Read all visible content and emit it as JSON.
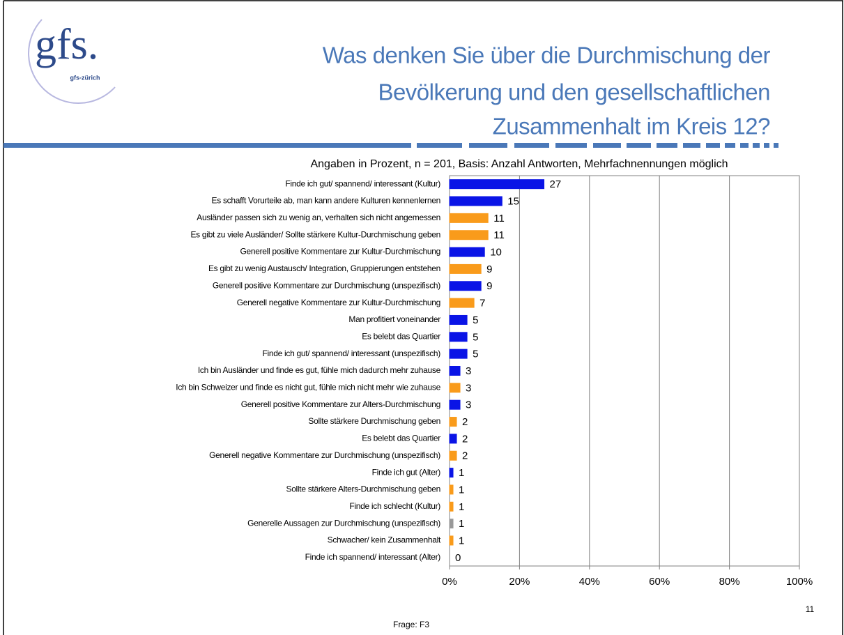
{
  "slide": {
    "logo": "gfs.",
    "logo_sub": "gfs-zürich",
    "title_lines": [
      "Was denken Sie über die Durchmischung der",
      "Bevölkerung und den gesellschaftlichen",
      "Zusammenhalt im Kreis 12?"
    ],
    "page_number": "11",
    "footer": "Frage: F3"
  },
  "chart_data": {
    "type": "barh",
    "subtitle": "Angaben in Prozent, n = 201, Basis: Anzahl Antworten, Mehrfachnennungen möglich",
    "categories": [
      "Finde ich gut/ spannend/ interessant (Kultur)",
      "Es schafft Vorurteile ab, man kann andere Kulturen kennenlernen",
      "Ausländer passen sich zu wenig an, verhalten sich nicht angemessen",
      "Es gibt zu viele Ausländer/ Sollte stärkere Kultur-Durchmischung geben",
      "Generell positive Kommentare zur Kultur-Durchmischung",
      "Es gibt zu wenig Austausch/ Integration, Gruppierungen entstehen",
      "Generell positive Kommentare zur Durchmischung (unspezifisch)",
      "Generell negative Kommentare zur Kultur-Durchmischung",
      "Man profitiert voneinander",
      "Es belebt das Quartier",
      "Finde ich gut/ spannend/ interessant (unspezifisch)",
      "Ich bin Ausländer und finde es gut, fühle mich dadurch mehr zuhause",
      "Ich bin Schweizer und finde es nicht gut, fühle mich nicht mehr wie zuhause",
      "Generell positive Kommentare zur Alters-Durchmischung",
      "Sollte stärkere Durchmischung geben",
      "Es belebt das Quartier",
      "Generell negative Kommentare zur Durchmischung (unspezifisch)",
      "Finde ich gut (Alter)",
      "Sollte stärkere Alters-Durchmischung geben",
      "Finde ich schlecht (Kultur)",
      "Generelle Aussagen zur Durchmischung (unspezifisch)",
      "Schwacher/ kein Zusammenhalt",
      "Finde ich spannend/ interessant (Alter)"
    ],
    "values": [
      27,
      15,
      11,
      11,
      10,
      9,
      9,
      7,
      5,
      5,
      5,
      3,
      3,
      3,
      2,
      2,
      2,
      1,
      1,
      1,
      1,
      1,
      0
    ],
    "colors": [
      "#0a14e6",
      "#0a14e6",
      "#f99b1b",
      "#f99b1b",
      "#0a14e6",
      "#f99b1b",
      "#0a14e6",
      "#f99b1b",
      "#0a14e6",
      "#0a14e6",
      "#0a14e6",
      "#0a14e6",
      "#f99b1b",
      "#0a14e6",
      "#f99b1b",
      "#0a14e6",
      "#f99b1b",
      "#0a14e6",
      "#f99b1b",
      "#f99b1b",
      "#999999",
      "#f99b1b",
      "#0a14e6"
    ],
    "xlim": [
      0,
      100
    ],
    "xticks": [
      {
        "value": 0,
        "label": "0%"
      },
      {
        "value": 20,
        "label": "20%"
      },
      {
        "value": 40,
        "label": "40%"
      },
      {
        "value": 60,
        "label": "60%"
      },
      {
        "value": 80,
        "label": "80%"
      },
      {
        "value": 100,
        "label": "100%"
      }
    ],
    "grid": true
  }
}
